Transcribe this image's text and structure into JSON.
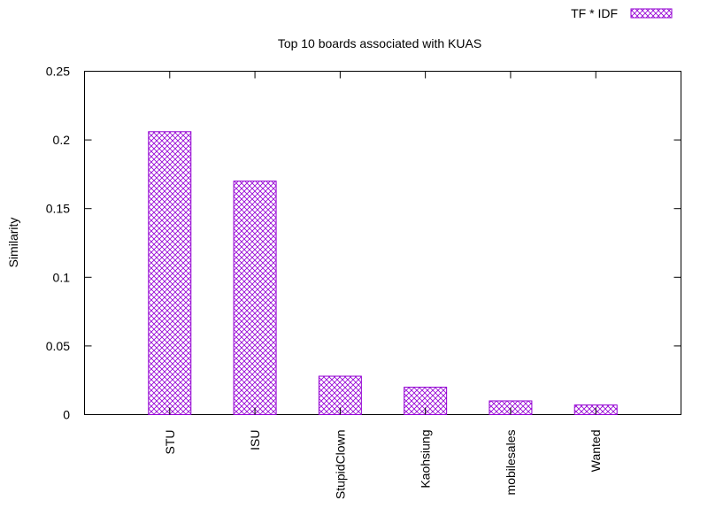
{
  "chart_data": {
    "type": "bar",
    "title": "Top 10 boards associated with KUAS",
    "xlabel": "",
    "ylabel": "Similarity",
    "ylim": [
      0,
      0.25
    ],
    "yticks": [
      "0",
      "0.05",
      "0.1",
      "0.15",
      "0.2",
      "0.25"
    ],
    "categories": [
      "STU",
      "ISU",
      "StupidClown",
      "Kaohsiung",
      "mobilesales",
      "Wanted"
    ],
    "series": [
      {
        "name": "TF * IDF",
        "values": [
          0.206,
          0.17,
          0.028,
          0.02,
          0.01,
          0.007
        ]
      }
    ],
    "legend_position": "top-right",
    "grid": false,
    "bar_color": "#9400d3",
    "bar_pattern": "crosshatch"
  }
}
